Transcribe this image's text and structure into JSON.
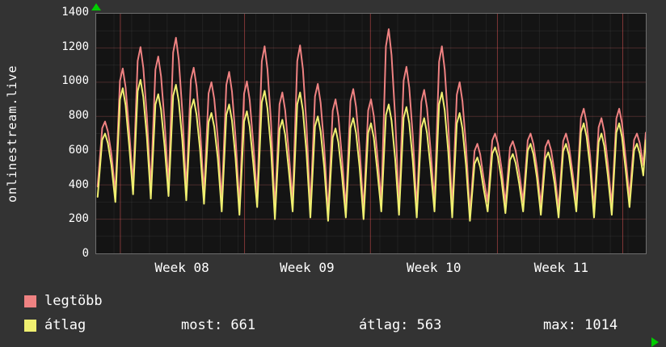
{
  "legend": {
    "items": [
      {
        "label": "legtöbb",
        "color": "#ef8282"
      },
      {
        "label": "átlag",
        "color": "#f0f070"
      }
    ],
    "stats": [
      {
        "label": "most",
        "value": 661,
        "display": "most: 661"
      },
      {
        "label": "átlag",
        "value": 563,
        "display": "átlag: 563"
      },
      {
        "label": "max",
        "value": 1014,
        "display": "max: 1014"
      }
    ]
  },
  "chart_data": {
    "type": "line",
    "title": "",
    "ylabel": "onlinestream.live",
    "xlabel": "",
    "ylim": [
      0,
      1400
    ],
    "y_ticks": [
      0,
      200,
      400,
      600,
      800,
      1000,
      1200,
      1400
    ],
    "x_ticks": [
      {
        "label": "Week 08",
        "pos": 0.157
      },
      {
        "label": "Week 09",
        "pos": 0.384
      },
      {
        "label": "Week 10",
        "pos": 0.614
      },
      {
        "label": "Week 11",
        "pos": 0.845
      }
    ],
    "week_gridlines": [
      0.044,
      0.27,
      0.499,
      0.73,
      0.958
    ],
    "days": 31,
    "grid": true,
    "legend_position": "bottom-left",
    "series": [
      {
        "name": "legtöbb",
        "color": "#ef8282",
        "daily_peaks": [
          770,
          1080,
          1205,
          1150,
          1260,
          1085,
          1000,
          1060,
          1005,
          1210,
          940,
          1215,
          990,
          900,
          960,
          900,
          1310,
          1090,
          955,
          1210,
          1000,
          640,
          700,
          655,
          700,
          660,
          700,
          845,
          790,
          845,
          700
        ],
        "daily_troughs": [
          390,
          355,
          400,
          380,
          395,
          370,
          350,
          300,
          280,
          330,
          250,
          300,
          260,
          230,
          260,
          250,
          300,
          280,
          260,
          300,
          260,
          230,
          300,
          290,
          300,
          280,
          260,
          300,
          260,
          280,
          330
        ],
        "end_value": 705
      },
      {
        "name": "átlag",
        "color": "#f0f070",
        "daily_peaks": [
          700,
          965,
          1014,
          930,
          985,
          900,
          820,
          870,
          830,
          950,
          780,
          940,
          800,
          730,
          790,
          760,
          870,
          855,
          790,
          940,
          820,
          560,
          620,
          580,
          640,
          590,
          640,
          760,
          700,
          760,
          640
        ],
        "daily_troughs": [
          330,
          300,
          345,
          320,
          335,
          310,
          290,
          245,
          225,
          270,
          200,
          245,
          210,
          190,
          210,
          200,
          245,
          225,
          210,
          245,
          210,
          190,
          245,
          235,
          245,
          225,
          210,
          245,
          210,
          225,
          270
        ],
        "end_value": 661
      }
    ],
    "stats": {
      "most": 661,
      "atlag": 563,
      "max": 1014
    },
    "colors": {
      "background": "#333333",
      "plot_background": "#141414",
      "grid_minor": "rgba(255,255,255,0.06)",
      "grid_major": "rgba(235,110,110,0.25)",
      "grid_week": "rgba(255,95,95,0.45)",
      "axis_arrow": "#00cc00",
      "text": "#ffffff"
    }
  }
}
